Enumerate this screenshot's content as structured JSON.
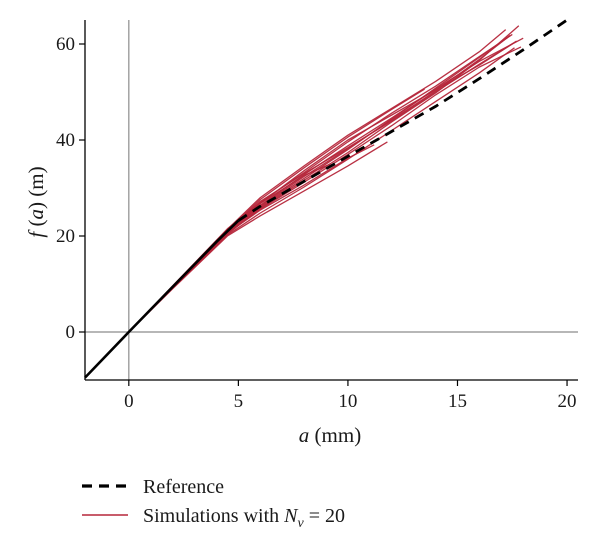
{
  "chart_data": {
    "type": "line",
    "xlabel": "a (mm)",
    "ylabel": "f (a) (m)",
    "xlim": [
      -2,
      20.5
    ],
    "ylim": [
      -10,
      65
    ],
    "x_ticks": [
      0,
      5,
      10,
      15,
      20
    ],
    "y_ticks": [
      0,
      20,
      40,
      60
    ],
    "grid": false,
    "legend_position": "bottom-left",
    "colors": {
      "reference": "#000000",
      "simulations": "#b5263a",
      "zero_lines": "#8c8c8c"
    },
    "reference": {
      "name": "Reference",
      "style": "dashed",
      "x": [
        -2,
        0,
        2,
        4,
        5,
        6,
        8,
        10,
        12,
        14,
        16,
        18,
        20
      ],
      "y": [
        -9.5,
        0,
        9.4,
        18.8,
        23.2,
        26.2,
        31.4,
        36.6,
        41.8,
        47.0,
        52.8,
        58.8,
        65.0
      ]
    },
    "simulations": {
      "name": "Simulations with N_v = 20",
      "legend_main": "Simulations with ",
      "legend_sym": "N",
      "legend_sub": "v",
      "legend_tail": " = 20",
      "series": [
        {
          "x": [
            0,
            2,
            4.5,
            6,
            8,
            10,
            12,
            14,
            16,
            17.5
          ],
          "y": [
            0,
            9.6,
            21.5,
            27.0,
            33.2,
            39.6,
            45.6,
            51.2,
            57.4,
            62.0
          ]
        },
        {
          "x": [
            0,
            2,
            4.5,
            6,
            8,
            10,
            12,
            14,
            16,
            17.8
          ],
          "y": [
            0,
            9.2,
            20.4,
            25.8,
            31.6,
            37.4,
            43.8,
            49.8,
            56.6,
            63.8
          ]
        },
        {
          "x": [
            0,
            2,
            4.5,
            6,
            8,
            10,
            12,
            14,
            16,
            17.6
          ],
          "y": [
            0,
            9.1,
            20.2,
            24.8,
            30.2,
            36.0,
            42.0,
            48.0,
            54.0,
            59.2
          ]
        },
        {
          "x": [
            0,
            2,
            4.5,
            6,
            8,
            10,
            12,
            14,
            16,
            18.0
          ],
          "y": [
            0,
            9.3,
            20.8,
            26.4,
            32.8,
            38.8,
            44.6,
            50.6,
            56.4,
            61.2
          ]
        },
        {
          "x": [
            0,
            2,
            4.5,
            6,
            8,
            10,
            12,
            13.5
          ],
          "y": [
            0,
            9.5,
            21.2,
            27.6,
            34.2,
            40.6,
            46.4,
            50.6
          ]
        },
        {
          "x": [
            0,
            2,
            4.5,
            6,
            8,
            10,
            11.8
          ],
          "y": [
            0,
            9.0,
            20.0,
            24.2,
            29.4,
            34.6,
            39.6
          ]
        },
        {
          "x": [
            0,
            2,
            4.5,
            6,
            8,
            10,
            12,
            14,
            16,
            17.5
          ],
          "y": [
            0,
            9.4,
            21.0,
            26.8,
            33.6,
            40.0,
            45.2,
            50.4,
            55.6,
            60.0
          ]
        },
        {
          "x": [
            0,
            2,
            4.5,
            6,
            8,
            10,
            12,
            14,
            16,
            17.9
          ],
          "y": [
            0,
            9.3,
            20.6,
            25.6,
            31.2,
            37.0,
            43.0,
            49.4,
            55.2,
            59.4
          ]
        },
        {
          "x": [
            0,
            2,
            4.5,
            6,
            8,
            10,
            12,
            14,
            16,
            17.2
          ],
          "y": [
            0,
            9.5,
            21.4,
            28.0,
            34.6,
            41.0,
            46.6,
            52.2,
            58.4,
            63.0
          ]
        },
        {
          "x": [
            0,
            2,
            4.5,
            6,
            8,
            10,
            11.2
          ],
          "y": [
            0,
            9.2,
            20.6,
            25.4,
            30.6,
            36.2,
            39.0
          ]
        },
        {
          "x": [
            0,
            2,
            4.5,
            6,
            8,
            10,
            12,
            14,
            16,
            17.4
          ],
          "y": [
            0,
            9.4,
            21.0,
            26.2,
            32.4,
            38.2,
            44.2,
            50.2,
            56.8,
            61.8
          ]
        },
        {
          "x": [
            0,
            2,
            4.5,
            6,
            8,
            9.2
          ],
          "y": [
            0,
            9.3,
            20.9,
            26.8,
            32.6,
            35.0
          ]
        },
        {
          "x": [
            0,
            2,
            4.5,
            6,
            8,
            10,
            12,
            14,
            16,
            17.7
          ],
          "y": [
            0,
            9.4,
            21.2,
            27.2,
            33.0,
            38.4,
            44.0,
            50.0,
            55.8,
            60.6
          ]
        },
        {
          "x": [
            0,
            2,
            4.5,
            6,
            8,
            10,
            12,
            14,
            16,
            17.3
          ],
          "y": [
            0,
            9.2,
            20.6,
            26.0,
            32.0,
            38.0,
            44.4,
            50.8,
            57.2,
            61.4
          ]
        }
      ]
    }
  }
}
